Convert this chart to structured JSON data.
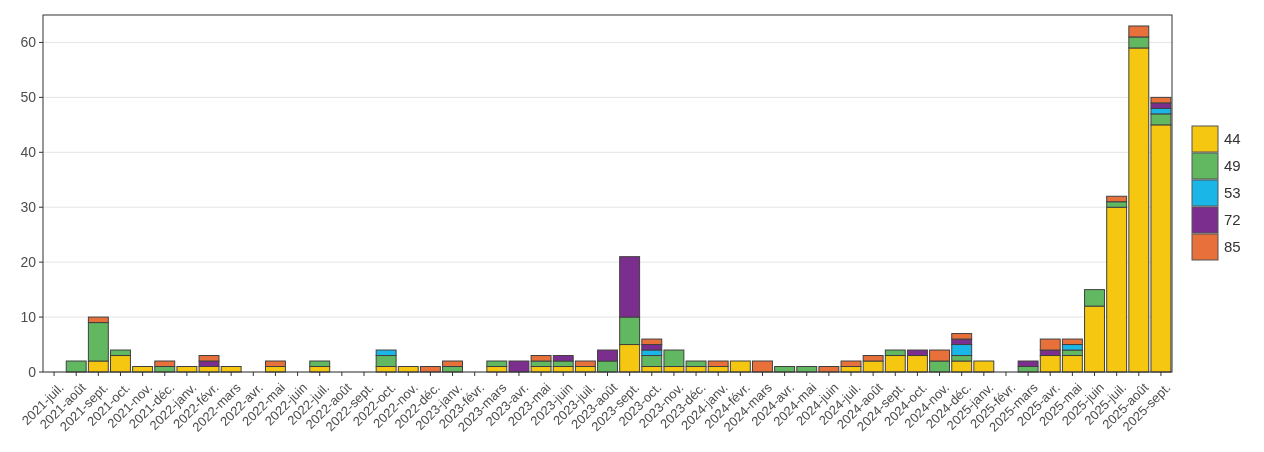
{
  "chart_data": {
    "type": "bar",
    "stacked": true,
    "categories": [
      "2021-juil.",
      "2021-août",
      "2021-sept.",
      "2021-oct.",
      "2021-nov.",
      "2021-déc.",
      "2022-janv.",
      "2022-févr.",
      "2022-mars",
      "2022-avr.",
      "2022-mai",
      "2022-juin",
      "2022-juil.",
      "2022-août",
      "2022-sept.",
      "2022-oct.",
      "2022-nov.",
      "2022-déc.",
      "2023-janv.",
      "2023-févr.",
      "2023-mars",
      "2023-avr.",
      "2023-mai",
      "2023-juin",
      "2023-juil.",
      "2023-août",
      "2023-sept.",
      "2023-oct.",
      "2023-nov.",
      "2023-déc.",
      "2024-janv.",
      "2024-févr.",
      "2024-mars",
      "2024-avr.",
      "2024-mai",
      "2024-juin",
      "2024-juil.",
      "2024-août",
      "2024-sept.",
      "2024-oct.",
      "2024-nov.",
      "2024-déc.",
      "2025-janv.",
      "2025-févr.",
      "2025-mars",
      "2025-avr.",
      "2025-mai",
      "2025-juin",
      "2025-juil.",
      "2025-août",
      "2025-sept."
    ],
    "series": [
      {
        "name": "44",
        "color": "#f5c710",
        "values": [
          0,
          0,
          2,
          3,
          1,
          0,
          1,
          1,
          1,
          0,
          1,
          0,
          1,
          0,
          0,
          1,
          1,
          0,
          0,
          0,
          1,
          0,
          1,
          1,
          1,
          0,
          5,
          1,
          1,
          1,
          1,
          2,
          0,
          0,
          0,
          0,
          1,
          2,
          3,
          3,
          0,
          2,
          2,
          0,
          0,
          3,
          3,
          12,
          30,
          59,
          45
        ]
      },
      {
        "name": "49",
        "color": "#61b861",
        "values": [
          0,
          2,
          7,
          1,
          0,
          1,
          0,
          0,
          0,
          0,
          0,
          0,
          1,
          0,
          0,
          2,
          0,
          0,
          1,
          0,
          1,
          0,
          1,
          1,
          0,
          2,
          5,
          2,
          3,
          1,
          0,
          0,
          0,
          1,
          1,
          0,
          0,
          0,
          1,
          0,
          2,
          1,
          0,
          0,
          1,
          0,
          1,
          3,
          1,
          2,
          2
        ]
      },
      {
        "name": "53",
        "color": "#1bb6e8",
        "values": [
          0,
          0,
          0,
          0,
          0,
          0,
          0,
          0,
          0,
          0,
          0,
          0,
          0,
          0,
          0,
          1,
          0,
          0,
          0,
          0,
          0,
          0,
          0,
          0,
          0,
          0,
          0,
          1,
          0,
          0,
          0,
          0,
          0,
          0,
          0,
          0,
          0,
          0,
          0,
          0,
          0,
          2,
          0,
          0,
          0,
          0,
          1,
          0,
          0,
          0,
          1
        ]
      },
      {
        "name": "72",
        "color": "#7c2e8e",
        "values": [
          0,
          0,
          0,
          0,
          0,
          0,
          0,
          1,
          0,
          0,
          0,
          0,
          0,
          0,
          0,
          0,
          0,
          0,
          0,
          0,
          0,
          2,
          0,
          1,
          0,
          2,
          11,
          1,
          0,
          0,
          0,
          0,
          0,
          0,
          0,
          0,
          0,
          0,
          0,
          1,
          0,
          1,
          0,
          0,
          1,
          1,
          0,
          0,
          0,
          0,
          1
        ]
      },
      {
        "name": "85",
        "color": "#e8703a",
        "values": [
          0,
          0,
          1,
          0,
          0,
          1,
          0,
          1,
          0,
          0,
          1,
          0,
          0,
          0,
          0,
          0,
          0,
          1,
          1,
          0,
          0,
          0,
          1,
          0,
          1,
          0,
          0,
          1,
          0,
          0,
          1,
          0,
          2,
          0,
          0,
          1,
          1,
          1,
          0,
          0,
          2,
          1,
          0,
          0,
          0,
          2,
          1,
          0,
          1,
          2,
          1
        ]
      }
    ],
    "ylim": [
      0,
      65
    ],
    "yticks": [
      0,
      10,
      20,
      30,
      40,
      50,
      60
    ],
    "grid": "y",
    "legend": "right"
  }
}
